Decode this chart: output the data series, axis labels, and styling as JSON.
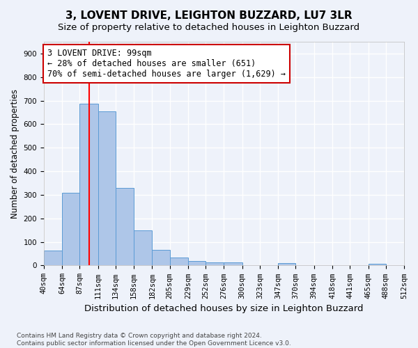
{
  "title1": "3, LOVENT DRIVE, LEIGHTON BUZZARD, LU7 3LR",
  "title2": "Size of property relative to detached houses in Leighton Buzzard",
  "xlabel": "Distribution of detached houses by size in Leighton Buzzard",
  "ylabel": "Number of detached properties",
  "footer": "Contains HM Land Registry data © Crown copyright and database right 2024.\nContains public sector information licensed under the Open Government Licence v3.0.",
  "bins": [
    40,
    64,
    87,
    111,
    134,
    158,
    182,
    205,
    229,
    252,
    276,
    300,
    323,
    347,
    370,
    394,
    418,
    441,
    465,
    488,
    512
  ],
  "bar_heights": [
    62,
    310,
    688,
    655,
    330,
    150,
    65,
    33,
    20,
    13,
    13,
    0,
    0,
    10,
    0,
    0,
    0,
    0,
    8,
    0
  ],
  "bar_color": "#aec6e8",
  "bar_edge_color": "#5b9bd5",
  "red_line_x": 99,
  "annotation_text": "3 LOVENT DRIVE: 99sqm\n← 28% of detached houses are smaller (651)\n70% of semi-detached houses are larger (1,629) →",
  "annotation_box_color": "#ffffff",
  "annotation_box_edge": "#cc0000",
  "ylim": [
    0,
    950
  ],
  "yticks": [
    0,
    100,
    200,
    300,
    400,
    500,
    600,
    700,
    800,
    900
  ],
  "background_color": "#eef2fa",
  "grid_color": "#ffffff",
  "title1_fontsize": 11,
  "title2_fontsize": 9.5,
  "xlabel_fontsize": 9.5,
  "ylabel_fontsize": 8.5,
  "tick_fontsize": 7.5,
  "annotation_fontsize": 8.5
}
